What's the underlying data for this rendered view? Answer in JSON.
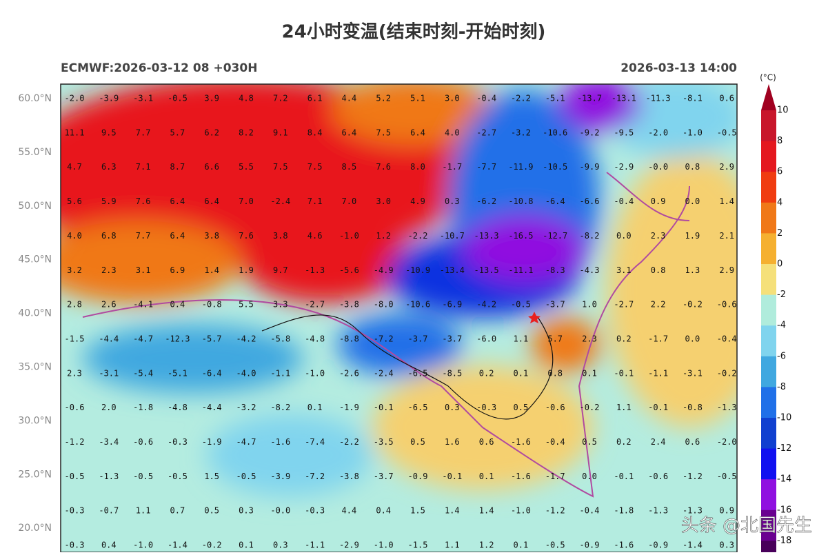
{
  "header": {
    "title": "24小时变温(结束时刻-开始时刻)",
    "left": "ECMWF:2026-03-12 08 +030H",
    "right": "2026-03-13 14:00"
  },
  "latitudes": [
    "60.0°N",
    "55.0°N",
    "50.0°N",
    "45.0°N",
    "40.0°N",
    "35.0°N",
    "30.0°N",
    "25.0°N",
    "20.0°N"
  ],
  "colorbar": {
    "unit": "(°C)",
    "labels": [
      "10",
      "8",
      "6",
      "4",
      "2",
      "0",
      "-2",
      "-4",
      "-6",
      "-8",
      "-10",
      "-12",
      "-14",
      "-16",
      "-18"
    ]
  },
  "grid": {
    "rows": [
      [
        "-2.0",
        "-3.9",
        "-3.1",
        "-0.5",
        "3.9",
        "4.8",
        "7.2",
        "6.1",
        "4.4",
        "5.2",
        "5.1",
        "3.0",
        "-0.4",
        "-2.2",
        "-5.1",
        "-13.7",
        "-13.1",
        "-11.3",
        "-8.1",
        "0.6"
      ],
      [
        "11.1",
        "9.5",
        "7.7",
        "5.7",
        "6.2",
        "8.2",
        "9.1",
        "8.4",
        "6.4",
        "7.5",
        "6.4",
        "4.0",
        "-2.7",
        "-3.2",
        "-10.6",
        "-9.2",
        "-9.5",
        "-2.0",
        "-1.0",
        "-0.5"
      ],
      [
        "4.7",
        "6.3",
        "7.1",
        "8.7",
        "6.6",
        "5.5",
        "7.5",
        "7.5",
        "8.5",
        "7.6",
        "8.0",
        "-1.7",
        "-7.7",
        "-11.9",
        "-10.5",
        "-9.9",
        "-2.9",
        "-0.0",
        "0.8",
        "2.9"
      ],
      [
        "5.6",
        "5.9",
        "7.6",
        "6.4",
        "6.4",
        "7.0",
        "-2.4",
        "7.1",
        "7.0",
        "3.0",
        "4.9",
        "0.3",
        "-6.2",
        "-10.8",
        "-6.4",
        "-6.6",
        "-0.4",
        "0.9",
        "0.0",
        "1.4"
      ],
      [
        "4.0",
        "6.8",
        "7.7",
        "6.4",
        "3.8",
        "7.6",
        "3.8",
        "4.6",
        "-1.0",
        "1.2",
        "-2.2",
        "-10.7",
        "-13.3",
        "-16.5",
        "-12.7",
        "-8.2",
        "0.0",
        "2.3",
        "1.9",
        "2.1"
      ],
      [
        "3.2",
        "2.3",
        "3.1",
        "6.9",
        "1.4",
        "1.9",
        "9.7",
        "-1.3",
        "-5.6",
        "-4.9",
        "-10.9",
        "-13.4",
        "-13.5",
        "-11.1",
        "-8.3",
        "-4.3",
        "3.1",
        "0.8",
        "1.3",
        "2.9"
      ],
      [
        "2.8",
        "2.6",
        "-4.1",
        "0.4",
        "-0.8",
        "5.5",
        "3.3",
        "-2.7",
        "-3.8",
        "-8.0",
        "-10.6",
        "-6.9",
        "-4.2",
        "-0.5",
        "-3.7",
        "1.0",
        "-2.7",
        "2.2",
        "-0.2",
        "-0.6"
      ],
      [
        "-1.5",
        "-4.4",
        "-4.7",
        "-12.3",
        "-5.7",
        "-4.2",
        "-5.8",
        "-4.8",
        "-8.8",
        "-7.2",
        "-3.7",
        "-3.7",
        "-6.0",
        "1.1",
        "5.7",
        "2.3",
        "0.2",
        "-1.7",
        "0.0",
        "-0.4"
      ],
      [
        "2.3",
        "-3.1",
        "-5.4",
        "-5.1",
        "-6.4",
        "-4.0",
        "-1.1",
        "-1.0",
        "-2.6",
        "-2.4",
        "-6.5",
        "-8.5",
        "0.2",
        "0.1",
        "0.8",
        "0.1",
        "-0.1",
        "-1.1",
        "-3.1",
        "-0.2"
      ],
      [
        "-0.6",
        "2.0",
        "-1.8",
        "-4.8",
        "-4.4",
        "-3.2",
        "-8.2",
        "0.1",
        "-1.9",
        "-0.1",
        "-6.5",
        "0.3",
        "-0.3",
        "0.5",
        "-0.6",
        "-0.2",
        "1.1",
        "-0.1",
        "-0.8",
        "-1.3"
      ],
      [
        "-1.2",
        "-3.4",
        "-0.6",
        "-0.3",
        "-1.9",
        "-4.7",
        "-1.6",
        "-7.4",
        "-2.2",
        "-3.5",
        "0.5",
        "1.6",
        "0.6",
        "-1.6",
        "-0.4",
        "0.5",
        "0.2",
        "2.4",
        "0.6",
        "-2.0"
      ],
      [
        "-0.5",
        "-1.3",
        "-0.5",
        "-0.5",
        "1.5",
        "-0.5",
        "-3.9",
        "-7.2",
        "-3.8",
        "-3.7",
        "-0.9",
        "-0.1",
        "0.1",
        "-1.6",
        "-1.7",
        "0.0",
        "-0.1",
        "-0.6",
        "-1.2",
        "-0.5"
      ],
      [
        "-0.3",
        "-0.7",
        "1.1",
        "0.7",
        "0.5",
        "0.3",
        "-0.0",
        "-0.3",
        "4.4",
        "0.4",
        "1.5",
        "1.4",
        "1.4",
        "-1.0",
        "-1.2",
        "-0.4",
        "-1.8",
        "-1.3",
        "-1.3",
        "0.9"
      ],
      [
        "-0.3",
        "0.4",
        "-1.0",
        "-1.4",
        "-0.2",
        "0.1",
        "0.3",
        "-1.1",
        "-2.9",
        "-1.0",
        "-1.5",
        "1.1",
        "1.2",
        "0.1",
        "-0.5",
        "-0.9",
        "-1.6",
        "-0.9",
        "-1.4",
        "0.3"
      ]
    ]
  },
  "watermark": "头条 @北国先生"
}
